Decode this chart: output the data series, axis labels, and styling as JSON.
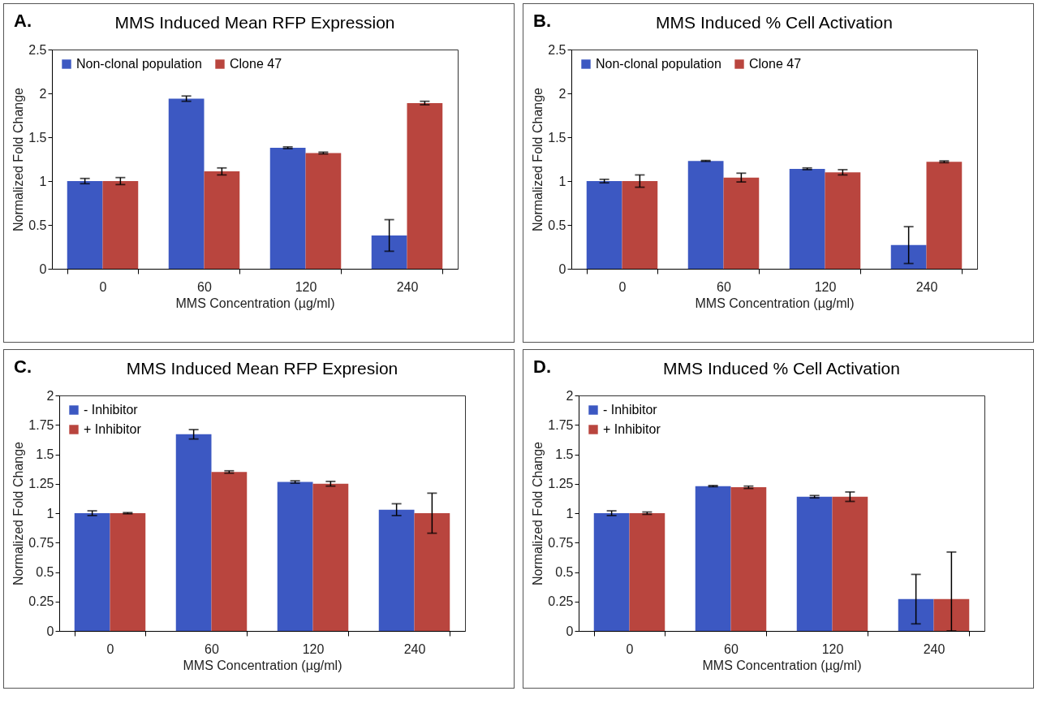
{
  "chart_data": [
    {
      "type": "bar",
      "title": "MMS Induced Mean RFP Expression",
      "annotations": [
        "A."
      ],
      "xlabel": "MMS Concentration (µg/ml)",
      "ylabel": "Normalized Fold Change",
      "categories": [
        "0",
        "60",
        "120",
        "240"
      ],
      "ylim": [
        0,
        2.5
      ],
      "yticks": [
        0,
        0.5,
        1,
        1.5,
        2,
        2.5
      ],
      "legend": "top left",
      "series": [
        {
          "name": "Non-clonal population",
          "color": "#3c58c2",
          "values": [
            1,
            1.94,
            1.38,
            0.38
          ],
          "errors": [
            0.03,
            0.03,
            0.01,
            0.18
          ]
        },
        {
          "name": "Clone 47",
          "color": "#b9453e",
          "values": [
            1,
            1.11,
            1.32,
            1.89
          ],
          "errors": [
            0.04,
            0.04,
            0.01,
            0.02
          ]
        }
      ]
    },
    {
      "type": "bar",
      "title": "MMS Induced % Cell Activation",
      "annotations": [
        "B."
      ],
      "xlabel": "MMS Concentration (µg/ml)",
      "ylabel": "Normalized Fold Change",
      "categories": [
        "0",
        "60",
        "120",
        "240"
      ],
      "ylim": [
        0,
        2.5
      ],
      "yticks": [
        0,
        0.5,
        1,
        1.5,
        2,
        2.5
      ],
      "legend": "top left",
      "series": [
        {
          "name": "Non-clonal population",
          "color": "#3c58c2",
          "values": [
            1,
            1.23,
            1.14,
            0.27
          ],
          "errors": [
            0.02,
            0.005,
            0.01,
            0.21
          ]
        },
        {
          "name": "Clone 47",
          "color": "#b9453e",
          "values": [
            1,
            1.04,
            1.1,
            1.22
          ],
          "errors": [
            0.07,
            0.05,
            0.03,
            0.01
          ]
        }
      ]
    },
    {
      "type": "bar",
      "title": "MMS Induced Mean RFP Expresion",
      "annotations": [
        "C."
      ],
      "xlabel": "MMS Concentration (µg/ml)",
      "ylabel": "Normalized Fold Change",
      "categories": [
        "0",
        "60",
        "120",
        "240"
      ],
      "ylim": [
        0,
        2
      ],
      "yticks": [
        0,
        0.25,
        0.5,
        0.75,
        1,
        1.25,
        1.5,
        1.75,
        2
      ],
      "legend": "top left",
      "series": [
        {
          "name": "- Inhibitor",
          "color": "#3c58c2",
          "values": [
            1,
            1.67,
            1.265,
            1.03
          ],
          "errors": [
            0.02,
            0.04,
            0.01,
            0.05
          ]
        },
        {
          "name": "+ Inhibitor",
          "color": "#b9453e",
          "values": [
            1,
            1.35,
            1.25,
            1
          ],
          "errors": [
            0.005,
            0.01,
            0.02,
            0.17
          ]
        }
      ]
    },
    {
      "type": "bar",
      "title": "MMS Induced % Cell Activation",
      "annotations": [
        "D."
      ],
      "xlabel": "MMS Concentration (µg/ml)",
      "ylabel": "Normalized Fold Change",
      "categories": [
        "0",
        "60",
        "120",
        "240"
      ],
      "ylim": [
        0,
        2
      ],
      "yticks": [
        0,
        0.25,
        0.5,
        0.75,
        1,
        1.25,
        1.5,
        1.75,
        2
      ],
      "legend": "top left",
      "series": [
        {
          "name": "- Inhibitor",
          "color": "#3c58c2",
          "values": [
            1,
            1.23,
            1.14,
            0.27
          ],
          "errors": [
            0.02,
            0.005,
            0.01,
            0.21
          ]
        },
        {
          "name": "+ Inhibitor",
          "color": "#b9453e",
          "values": [
            1,
            1.22,
            1.14,
            0.27
          ],
          "errors": [
            0.01,
            0.01,
            0.04,
            [
              0,
              0.67
            ]
          ]
        }
      ]
    }
  ]
}
